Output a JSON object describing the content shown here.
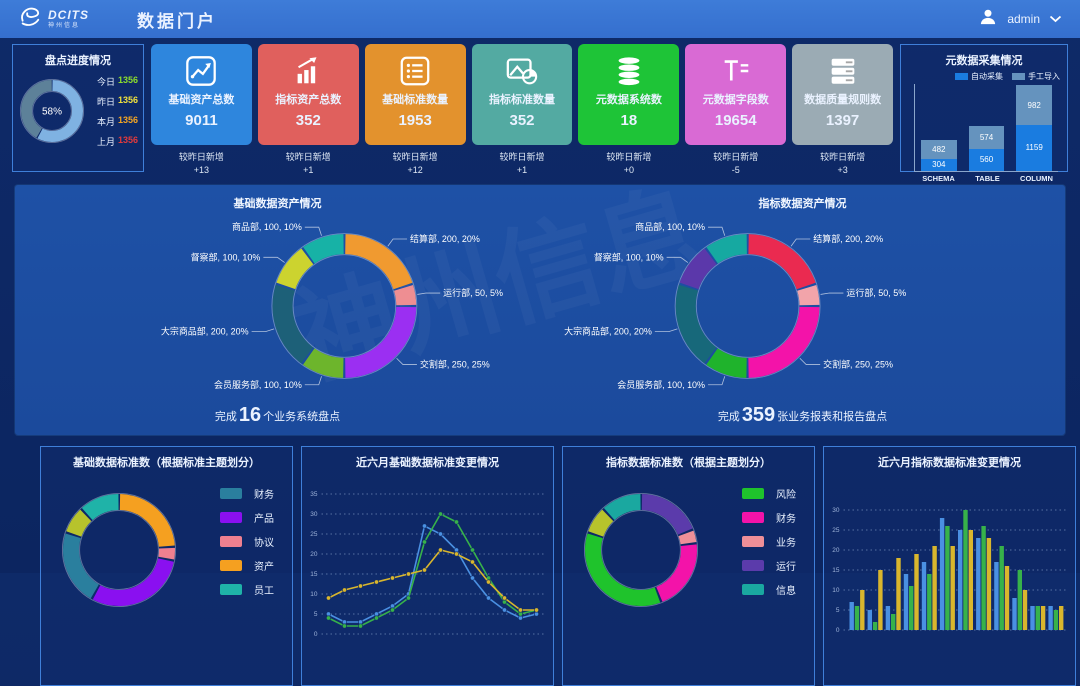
{
  "header": {
    "title": "数据门户",
    "logo": {
      "name": "DCITS",
      "sub": "神州信息"
    },
    "user": {
      "name": "admin"
    }
  },
  "progress": {
    "title": "盘点进度情况",
    "chart_data": {
      "type": "pie",
      "center_label": "58%",
      "segments": [
        {
          "value": 58,
          "color": "#7fb2e2"
        },
        {
          "value": 42,
          "color": "#5d8199"
        }
      ]
    },
    "stats": [
      {
        "label": "今日",
        "value": "1356",
        "color": "#8ddc2c"
      },
      {
        "label": "昨日",
        "value": "1356",
        "color": "#f0e13d"
      },
      {
        "label": "本月",
        "value": "1356",
        "color": "#f5a623"
      },
      {
        "label": "上月",
        "value": "1356",
        "color": "#e23b3b"
      }
    ]
  },
  "cards": [
    {
      "label": "基础资产总数",
      "value": "9011",
      "color": "#2e86dd",
      "icon": "line-chart",
      "delta_label": "较昨日新增",
      "delta": "+13"
    },
    {
      "label": "指标资产总数",
      "value": "352",
      "color": "#e0605d",
      "icon": "bar-arrow",
      "delta_label": "较昨日新增",
      "delta": "+1"
    },
    {
      "label": "基础标准数量",
      "value": "1953",
      "color": "#e3922d",
      "icon": "list",
      "delta_label": "较昨日新增",
      "delta": "+12"
    },
    {
      "label": "指标标准数量",
      "value": "352",
      "color": "#53aaa2",
      "icon": "image-pie",
      "delta_label": "较昨日新增",
      "delta": "+1"
    },
    {
      "label": "元数据系统数",
      "value": "18",
      "color": "#1ec437",
      "icon": "database",
      "delta_label": "较昨日新增",
      "delta": "+0"
    },
    {
      "label": "元数据字段数",
      "value": "19654",
      "color": "#d96ad4",
      "icon": "text-fields",
      "delta_label": "较昨日新增",
      "delta": "-5"
    },
    {
      "label": "数据质量规则数",
      "value": "1397",
      "color": "#9babb4",
      "icon": "server",
      "delta_label": "较昨日新增",
      "delta": "+3"
    }
  ],
  "metadata": {
    "title": "元数据采集情况",
    "chart_data": {
      "type": "bar",
      "stacked": true,
      "categories": [
        "SCHEMA",
        "TABLE",
        "COLUMN"
      ],
      "series": [
        {
          "name": "自动采集",
          "color": "#1a7ce0",
          "values": [
            304,
            560,
            1159
          ]
        },
        {
          "name": "手工导入",
          "color": "#6593be",
          "values": [
            482,
            574,
            982
          ]
        }
      ]
    }
  },
  "assets": {
    "watermark": "神州信息",
    "left": {
      "title": "基础数据资产情况",
      "caption": {
        "prefix": "完成",
        "big": "16",
        "suffix": "个业务系统盘点"
      },
      "chart_data": {
        "type": "pie",
        "segments": [
          {
            "name": "结算部",
            "value": 200,
            "pct": 20,
            "color": "#f09a30"
          },
          {
            "name": "运行部",
            "value": 50,
            "pct": 5,
            "color": "#ee8e92"
          },
          {
            "name": "交割部",
            "value": 250,
            "pct": 25,
            "color": "#9b2ff2"
          },
          {
            "name": "会员服务部",
            "value": 100,
            "pct": 10,
            "color": "#6db52c"
          },
          {
            "name": "大宗商品部",
            "value": 200,
            "pct": 20,
            "color": "#1d6078"
          },
          {
            "name": "督察部",
            "value": 100,
            "pct": 10,
            "color": "#ccd32f"
          },
          {
            "name": "商品部",
            "value": 100,
            "pct": 10,
            "color": "#17b2a6"
          }
        ]
      }
    },
    "right": {
      "title": "指标数据资产情况",
      "caption": {
        "prefix": "完成",
        "big": "359",
        "suffix": "张业务报表和报告盘点"
      },
      "chart_data": {
        "type": "pie",
        "segments": [
          {
            "name": "结算部",
            "value": 200,
            "pct": 20,
            "color": "#ea2a50"
          },
          {
            "name": "运行部",
            "value": 50,
            "pct": 5,
            "color": "#f2a4aa"
          },
          {
            "name": "交割部",
            "value": 250,
            "pct": 25,
            "color": "#f313a9"
          },
          {
            "name": "会员服务部",
            "value": 100,
            "pct": 10,
            "color": "#1fb32c"
          },
          {
            "name": "大宗商品部",
            "value": 200,
            "pct": 20,
            "color": "#17687a"
          },
          {
            "name": "督察部",
            "value": 100,
            "pct": 10,
            "color": "#5b38aa"
          },
          {
            "name": "商品部",
            "value": 100,
            "pct": 10,
            "color": "#16a9a1"
          }
        ]
      }
    }
  },
  "bottom": [
    {
      "title": "基础数据标准数（根据标准主题划分）",
      "legend": [
        {
          "label": "财务",
          "color": "#2a7f9e"
        },
        {
          "label": "产品",
          "color": "#8a10f0"
        },
        {
          "label": "协议",
          "color": "#ee8090"
        },
        {
          "label": "资产",
          "color": "#f5a020"
        },
        {
          "label": "员工",
          "color": "#1fb3a8"
        }
      ],
      "chart_data": {
        "type": "pie",
        "segments": [
          {
            "name": "资产",
            "value": 24,
            "color": "#f5a020"
          },
          {
            "name": "协议",
            "value": 4,
            "color": "#ee8090"
          },
          {
            "name": "产品",
            "value": 30,
            "color": "#8a10f0"
          },
          {
            "name": "财务",
            "value": 22,
            "color": "#2a7f9e"
          },
          {
            "name": "",
            "value": 8,
            "color": "#b7c32c"
          },
          {
            "name": "员工",
            "value": 12,
            "color": "#1fb3a8"
          }
        ]
      }
    },
    {
      "title": "近六月基础数据标准变更情况",
      "chart_data": {
        "type": "line",
        "ymax": 35,
        "yticks": [
          35,
          30,
          25,
          20,
          15,
          10,
          5,
          0
        ],
        "series": [
          {
            "color": "#4a90e2",
            "values": [
              5,
              3,
              3,
              5,
              7,
              10,
              27,
              25,
              21,
              14,
              9,
              6,
              4,
              5
            ]
          },
          {
            "color": "#37b24a",
            "values": [
              4,
              2,
              2,
              4,
              6,
              9,
              23,
              30,
              28,
              21,
              14,
              8,
              5,
              6
            ]
          },
          {
            "color": "#d9b62d",
            "values": [
              9,
              11,
              12,
              13,
              14,
              15,
              16,
              21,
              20,
              18,
              13,
              9,
              6,
              6
            ]
          }
        ]
      }
    },
    {
      "title": "指标数据标准数（根据主题划分）",
      "legend": [
        {
          "label": "风险",
          "color": "#1fc32c"
        },
        {
          "label": "财务",
          "color": "#f313a9"
        },
        {
          "label": "业务",
          "color": "#ee8f98"
        },
        {
          "label": "运行",
          "color": "#5b3bab"
        },
        {
          "label": "信息",
          "color": "#1aa8a0"
        }
      ],
      "chart_data": {
        "type": "pie",
        "segments": [
          {
            "name": "运行",
            "value": 19,
            "color": "#5b3bab"
          },
          {
            "name": "业务",
            "value": 4,
            "color": "#ee8f98"
          },
          {
            "name": "财务",
            "value": 21,
            "color": "#f313a9"
          },
          {
            "name": "风险",
            "value": 36,
            "color": "#1fc32c"
          },
          {
            "name": "",
            "value": 8,
            "color": "#b7c32c"
          },
          {
            "name": "信息",
            "value": 12,
            "color": "#1aa8a0"
          }
        ]
      }
    },
    {
      "title": "近六月指标数据标准变更情况",
      "chart_data": {
        "type": "bar",
        "ymax": 30,
        "yticks": [
          30,
          25,
          20,
          15,
          10,
          5,
          0
        ],
        "series": [
          {
            "color": "#4a90e2",
            "values": [
              7,
              5,
              6,
              14,
              17,
              28,
              25,
              23,
              17,
              8,
              6,
              6
            ]
          },
          {
            "color": "#37b24a",
            "values": [
              6,
              2,
              4,
              11,
              14,
              26,
              30,
              26,
              21,
              15,
              6,
              5
            ]
          },
          {
            "color": "#d9b62d",
            "values": [
              10,
              15,
              18,
              19,
              21,
              21,
              25,
              23,
              16,
              10,
              6,
              6
            ]
          }
        ]
      }
    }
  ]
}
